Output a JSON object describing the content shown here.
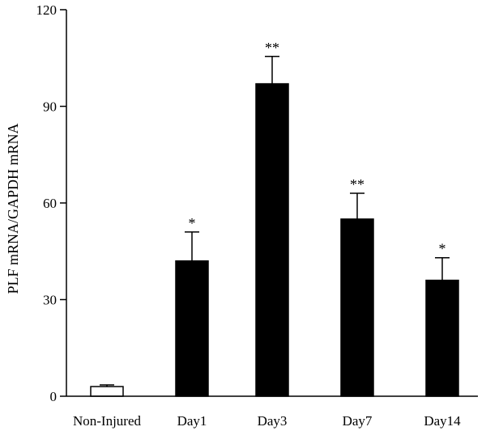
{
  "chart_data": {
    "type": "bar",
    "title": "",
    "xlabel": "",
    "ylabel": "PLF mRNA/GAPDH mRNA",
    "ylim": [
      0,
      120
    ],
    "yticks": [
      0,
      30,
      60,
      90,
      120
    ],
    "grid": false,
    "categories": [
      "Non-Injured",
      "Day1",
      "Day3",
      "Day7",
      "Day14"
    ],
    "values": [
      3,
      42,
      97,
      55,
      36
    ],
    "errors": [
      0.5,
      9,
      8.5,
      8,
      7
    ],
    "significance": [
      "",
      "*",
      "**",
      "**",
      "*"
    ],
    "bar_fills": [
      "#ffffff",
      "#000000",
      "#000000",
      "#000000",
      "#000000"
    ]
  }
}
